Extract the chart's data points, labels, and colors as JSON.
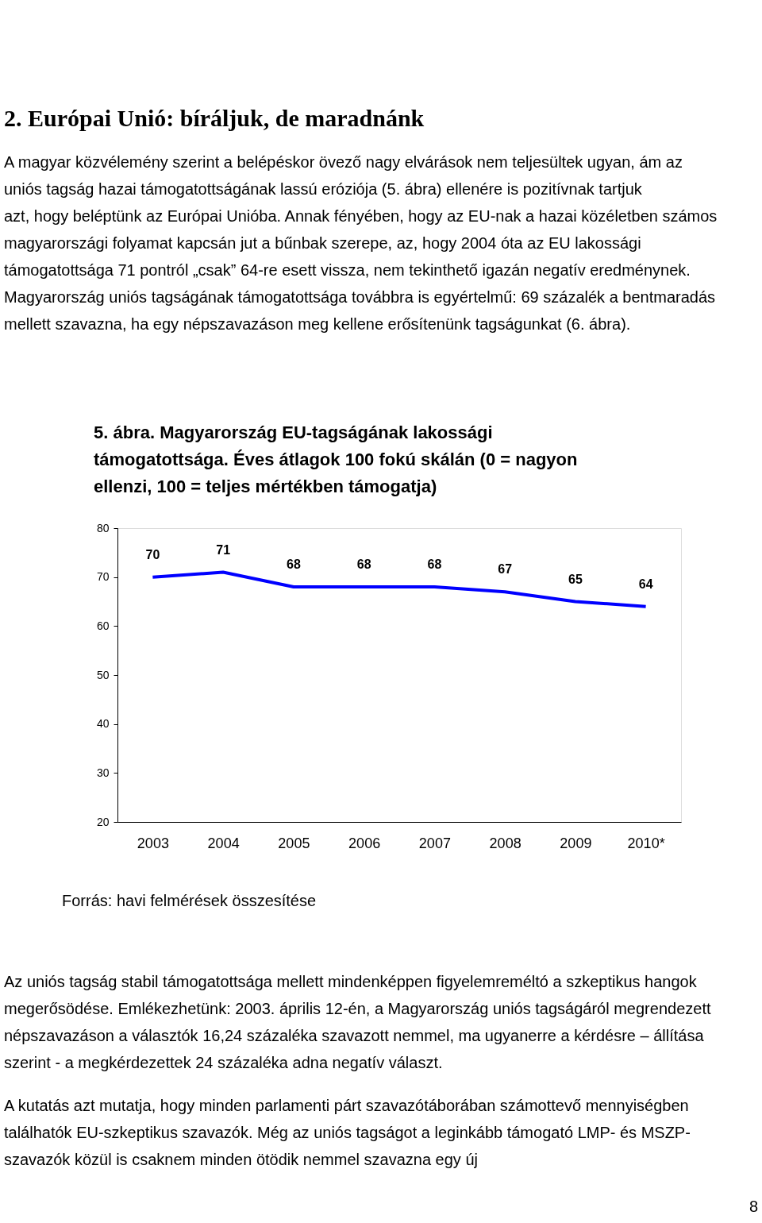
{
  "chart_data": {
    "type": "line",
    "title": "5.  ábra. Magyarország EU-tagságának lakossági támogatottsága. Éves átlagok 100 fokú skálán (0 = nagyon ellenzi, 100 = teljes mértékben támogatja)",
    "categories": [
      "2003",
      "2004",
      "2005",
      "2006",
      "2007",
      "2008",
      "2009",
      "2010*"
    ],
    "series": [
      {
        "color": "#0000ff",
        "values": [
          70,
          71,
          68,
          68,
          68,
          67,
          65,
          64
        ]
      }
    ],
    "ylim": [
      20,
      80
    ],
    "yticks": [
      20,
      30,
      40,
      50,
      60,
      70,
      80
    ],
    "data_labels": true,
    "grid": false,
    "marker": "none",
    "line_style": "solid",
    "annotations": [
      "2. Európai Unió: bíráljuk, de maradnánk",
      "A magyar közvélemény szerint a belépéskor övező nagy elvárások nem teljesültek ugyan, ám az uniós tagság hazai támogatottságának lassú eróziója (5. ábra) ellenére is pozitívnak tartjuk azt, hogy beléptünk az Európai Unióba. Annak fényében, hogy az EU-nak a hazai közéletben számos magyarországi folyamat kapcsán jut a bűnbak szerepe, az, hogy 2004 óta az EU lakossági támogatottsága 71 pontról „csak” 64-re esett vissza, nem tekinthető igazán negatív eredménynek. Magyarország uniós tagságának támogatottsága továbbra is egyértelmű: 69 százalék a bentmaradás mellett szavazna, ha egy népszavazáson meg kellene erősítenünk tagságunkat (6. ábra).",
      "Forrás: havi felmérések összesítése",
      "Az uniós tagság stabil támogatottsága mellett mindenképpen figyelemreméltó a szkeptikus hangok megerősödése. Emlékezhetünk: 2003. április 12-én, a Magyarország uniós tagságáról megrendezett népszavazáson a választók 16,24 százaléka szavazott nemmel, ma ugyanerre a kérdésre – állítása szerint - a megkérdezettek 24 százaléka adna negatív választ.",
      "A kutatás azt mutatja, hogy minden parlamenti párt szavazótáborában számottevő mennyiségben találhatók EU-szkeptikus szavazók. Még az uniós tagságot a leginkább támogató LMP- és MSZP-szavazók közül is csaknem minden ötödik nemmel szavazna egy új",
      "8"
    ]
  }
}
